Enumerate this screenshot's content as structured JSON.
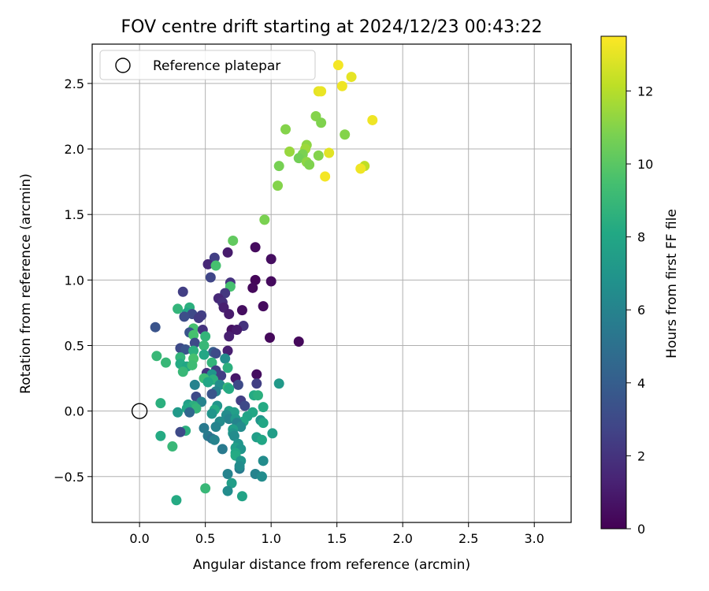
{
  "chart_data": {
    "type": "scatter",
    "title": "FOV centre drift starting at 2024/12/23 00:43:22",
    "xlabel": "Angular distance from reference (arcmin)",
    "ylabel": "Rotation from reference (arcmin)",
    "xlim": [
      -0.36,
      3.28
    ],
    "ylim": [
      -0.85,
      2.8
    ],
    "xticks": [
      0.0,
      0.5,
      1.0,
      1.5,
      2.0,
      2.5,
      3.0
    ],
    "xtick_labels": [
      "0.0",
      "0.5",
      "1.0",
      "1.5",
      "2.0",
      "2.5",
      "3.0"
    ],
    "yticks": [
      -0.5,
      0.0,
      0.5,
      1.0,
      1.5,
      2.0,
      2.5
    ],
    "ytick_labels": [
      "−0.5",
      "0.0",
      "0.5",
      "1.0",
      "1.5",
      "2.0",
      "2.5"
    ],
    "grid": true,
    "legend": {
      "position": "top-left",
      "label": "Reference platepar"
    },
    "reference_point": {
      "x": 0.0,
      "y": 0.0
    },
    "colorbar": {
      "label": "Hours from first FF file",
      "range": [
        0,
        13.5
      ],
      "ticks": [
        0,
        2,
        4,
        6,
        8,
        10,
        12
      ],
      "tick_labels": [
        "0",
        "2",
        "4",
        "6",
        "8",
        "10",
        "12"
      ],
      "colormap": "viridis"
    },
    "points": [
      {
        "x": 1.51,
        "y": 2.64,
        "c": 13.3
      },
      {
        "x": 1.61,
        "y": 2.55,
        "c": 13.0
      },
      {
        "x": 1.54,
        "y": 2.48,
        "c": 13.2
      },
      {
        "x": 1.36,
        "y": 2.44,
        "c": 13.0
      },
      {
        "x": 1.38,
        "y": 2.44,
        "c": 13.1
      },
      {
        "x": 1.34,
        "y": 2.25,
        "c": 11.0
      },
      {
        "x": 1.38,
        "y": 2.2,
        "c": 10.9
      },
      {
        "x": 1.77,
        "y": 2.22,
        "c": 13.2
      },
      {
        "x": 1.11,
        "y": 2.15,
        "c": 11.0
      },
      {
        "x": 1.56,
        "y": 2.11,
        "c": 11.0
      },
      {
        "x": 1.27,
        "y": 2.03,
        "c": 11.2
      },
      {
        "x": 1.26,
        "y": 2.0,
        "c": 11.5
      },
      {
        "x": 1.14,
        "y": 1.98,
        "c": 11.4
      },
      {
        "x": 1.24,
        "y": 1.96,
        "c": 10.8
      },
      {
        "x": 1.44,
        "y": 1.97,
        "c": 12.9
      },
      {
        "x": 1.36,
        "y": 1.95,
        "c": 11.0
      },
      {
        "x": 1.21,
        "y": 1.93,
        "c": 10.6
      },
      {
        "x": 1.27,
        "y": 1.9,
        "c": 11.2
      },
      {
        "x": 1.29,
        "y": 1.88,
        "c": 10.9
      },
      {
        "x": 1.71,
        "y": 1.87,
        "c": 12.2
      },
      {
        "x": 1.68,
        "y": 1.85,
        "c": 13.2
      },
      {
        "x": 1.06,
        "y": 1.87,
        "c": 10.7
      },
      {
        "x": 1.41,
        "y": 1.79,
        "c": 13.3
      },
      {
        "x": 1.05,
        "y": 1.72,
        "c": 11.0
      },
      {
        "x": 0.95,
        "y": 1.46,
        "c": 10.8
      },
      {
        "x": 0.71,
        "y": 1.3,
        "c": 10.2
      },
      {
        "x": 0.88,
        "y": 1.25,
        "c": 0.4
      },
      {
        "x": 0.67,
        "y": 1.21,
        "c": 1.0
      },
      {
        "x": 0.57,
        "y": 1.17,
        "c": 2.5
      },
      {
        "x": 1.0,
        "y": 1.16,
        "c": 0.5
      },
      {
        "x": 0.52,
        "y": 1.12,
        "c": 1.5
      },
      {
        "x": 0.58,
        "y": 1.11,
        "c": 9.5
      },
      {
        "x": 0.54,
        "y": 1.02,
        "c": 2.8
      },
      {
        "x": 0.88,
        "y": 1.0,
        "c": 0.2
      },
      {
        "x": 1.0,
        "y": 0.99,
        "c": 0.4
      },
      {
        "x": 0.69,
        "y": 0.98,
        "c": 2.0
      },
      {
        "x": 0.69,
        "y": 0.95,
        "c": 9.5
      },
      {
        "x": 0.86,
        "y": 0.94,
        "c": 0.3
      },
      {
        "x": 0.33,
        "y": 0.91,
        "c": 2.5
      },
      {
        "x": 0.65,
        "y": 0.9,
        "c": 2.2
      },
      {
        "x": 0.6,
        "y": 0.86,
        "c": 1.5
      },
      {
        "x": 0.63,
        "y": 0.83,
        "c": 1.8
      },
      {
        "x": 0.64,
        "y": 0.79,
        "c": 1.2
      },
      {
        "x": 0.78,
        "y": 0.77,
        "c": 0.5
      },
      {
        "x": 0.94,
        "y": 0.8,
        "c": 0.4
      },
      {
        "x": 0.29,
        "y": 0.78,
        "c": 8.8
      },
      {
        "x": 0.38,
        "y": 0.79,
        "c": 8.5
      },
      {
        "x": 0.36,
        "y": 0.75,
        "c": 8.0
      },
      {
        "x": 0.4,
        "y": 0.74,
        "c": 3.0
      },
      {
        "x": 0.47,
        "y": 0.73,
        "c": 2.5
      },
      {
        "x": 0.68,
        "y": 0.74,
        "c": 1.0
      },
      {
        "x": 0.34,
        "y": 0.72,
        "c": 3.2
      },
      {
        "x": 0.45,
        "y": 0.71,
        "c": 2.3
      },
      {
        "x": 0.79,
        "y": 0.65,
        "c": 2.0
      },
      {
        "x": 0.12,
        "y": 0.64,
        "c": 3.5
      },
      {
        "x": 0.41,
        "y": 0.63,
        "c": 9.5
      },
      {
        "x": 0.48,
        "y": 0.62,
        "c": 2.0
      },
      {
        "x": 0.7,
        "y": 0.62,
        "c": 0.6
      },
      {
        "x": 0.74,
        "y": 0.62,
        "c": 1.0
      },
      {
        "x": 0.38,
        "y": 0.6,
        "c": 3.5
      },
      {
        "x": 0.41,
        "y": 0.58,
        "c": 9.5
      },
      {
        "x": 0.5,
        "y": 0.57,
        "c": 8.8
      },
      {
        "x": 0.68,
        "y": 0.57,
        "c": 1.2
      },
      {
        "x": 0.99,
        "y": 0.56,
        "c": 0.3
      },
      {
        "x": 1.21,
        "y": 0.53,
        "c": 0.3
      },
      {
        "x": 0.42,
        "y": 0.52,
        "c": 3.0
      },
      {
        "x": 0.49,
        "y": 0.5,
        "c": 9.0
      },
      {
        "x": 0.31,
        "y": 0.48,
        "c": 3.0
      },
      {
        "x": 0.35,
        "y": 0.47,
        "c": 3.5
      },
      {
        "x": 0.67,
        "y": 0.46,
        "c": 1.2
      },
      {
        "x": 0.41,
        "y": 0.46,
        "c": 8.5
      },
      {
        "x": 0.56,
        "y": 0.45,
        "c": 4.0
      },
      {
        "x": 0.58,
        "y": 0.44,
        "c": 3.0
      },
      {
        "x": 0.13,
        "y": 0.42,
        "c": 9.0
      },
      {
        "x": 0.49,
        "y": 0.43,
        "c": 8.0
      },
      {
        "x": 0.31,
        "y": 0.41,
        "c": 8.8
      },
      {
        "x": 0.41,
        "y": 0.4,
        "c": 9.5
      },
      {
        "x": 0.65,
        "y": 0.4,
        "c": 6.5
      },
      {
        "x": 0.2,
        "y": 0.37,
        "c": 9.0
      },
      {
        "x": 0.31,
        "y": 0.36,
        "c": 8.2
      },
      {
        "x": 0.55,
        "y": 0.37,
        "c": 8.8
      },
      {
        "x": 0.36,
        "y": 0.34,
        "c": 8.0
      },
      {
        "x": 0.4,
        "y": 0.35,
        "c": 9.2
      },
      {
        "x": 0.67,
        "y": 0.33,
        "c": 8.5
      },
      {
        "x": 0.58,
        "y": 0.31,
        "c": 2.5
      },
      {
        "x": 0.51,
        "y": 0.29,
        "c": 2.0
      },
      {
        "x": 0.33,
        "y": 0.3,
        "c": 9.0
      },
      {
        "x": 0.55,
        "y": 0.28,
        "c": 7.0
      },
      {
        "x": 0.62,
        "y": 0.27,
        "c": 2.5
      },
      {
        "x": 0.89,
        "y": 0.28,
        "c": 0.5
      },
      {
        "x": 0.73,
        "y": 0.25,
        "c": 0.8
      },
      {
        "x": 0.49,
        "y": 0.25,
        "c": 9.2
      },
      {
        "x": 0.56,
        "y": 0.24,
        "c": 8.5
      },
      {
        "x": 0.52,
        "y": 0.22,
        "c": 8.0
      },
      {
        "x": 0.42,
        "y": 0.2,
        "c": 6.0
      },
      {
        "x": 0.61,
        "y": 0.2,
        "c": 6.5
      },
      {
        "x": 0.75,
        "y": 0.2,
        "c": 3.0
      },
      {
        "x": 0.89,
        "y": 0.21,
        "c": 2.5
      },
      {
        "x": 1.06,
        "y": 0.21,
        "c": 7.2
      },
      {
        "x": 0.67,
        "y": 0.18,
        "c": 9.0
      },
      {
        "x": 0.68,
        "y": 0.17,
        "c": 8.2
      },
      {
        "x": 0.58,
        "y": 0.15,
        "c": 6.0
      },
      {
        "x": 0.55,
        "y": 0.13,
        "c": 3.5
      },
      {
        "x": 0.43,
        "y": 0.11,
        "c": 3.0
      },
      {
        "x": 0.87,
        "y": 0.12,
        "c": 8.2
      },
      {
        "x": 0.9,
        "y": 0.12,
        "c": 8.5
      },
      {
        "x": 0.77,
        "y": 0.08,
        "c": 2.5
      },
      {
        "x": 0.47,
        "y": 0.07,
        "c": 6.0
      },
      {
        "x": 0.16,
        "y": 0.06,
        "c": 8.5
      },
      {
        "x": 0.37,
        "y": 0.05,
        "c": 7.5
      },
      {
        "x": 0.41,
        "y": 0.04,
        "c": 8.5
      },
      {
        "x": 0.59,
        "y": 0.04,
        "c": 7.0
      },
      {
        "x": 0.8,
        "y": 0.04,
        "c": 3.0
      },
      {
        "x": 0.94,
        "y": 0.03,
        "c": 8.2
      },
      {
        "x": 0.43,
        "y": 0.02,
        "c": 8.8
      },
      {
        "x": 0.36,
        "y": 0.02,
        "c": 8.0
      },
      {
        "x": 0.57,
        "y": 0.01,
        "c": 8.2
      },
      {
        "x": 0.68,
        "y": 0.0,
        "c": 7.5
      },
      {
        "x": 0.29,
        "y": -0.01,
        "c": 7.2
      },
      {
        "x": 0.38,
        "y": -0.01,
        "c": 4.5
      },
      {
        "x": 0.72,
        "y": -0.01,
        "c": 7.5
      },
      {
        "x": 0.86,
        "y": -0.01,
        "c": 8.0
      },
      {
        "x": 0.55,
        "y": -0.02,
        "c": 7.0
      },
      {
        "x": 0.66,
        "y": -0.03,
        "c": 6.5
      },
      {
        "x": 0.82,
        "y": -0.04,
        "c": 7.8
      },
      {
        "x": 0.68,
        "y": -0.06,
        "c": 6.0
      },
      {
        "x": 0.73,
        "y": -0.06,
        "c": 7.2
      },
      {
        "x": 0.92,
        "y": -0.07,
        "c": 7.0
      },
      {
        "x": 0.79,
        "y": -0.08,
        "c": 8.0
      },
      {
        "x": 0.61,
        "y": -0.08,
        "c": 6.5
      },
      {
        "x": 0.74,
        "y": -0.09,
        "c": 6.0
      },
      {
        "x": 0.94,
        "y": -0.09,
        "c": 8.0
      },
      {
        "x": 0.77,
        "y": -0.12,
        "c": 6.5
      },
      {
        "x": 0.49,
        "y": -0.13,
        "c": 5.5
      },
      {
        "x": 0.58,
        "y": -0.12,
        "c": 6.0
      },
      {
        "x": 0.71,
        "y": -0.14,
        "c": 7.5
      },
      {
        "x": 0.35,
        "y": -0.15,
        "c": 8.5
      },
      {
        "x": 0.31,
        "y": -0.16,
        "c": 3.0
      },
      {
        "x": 1.01,
        "y": -0.17,
        "c": 7.5
      },
      {
        "x": 0.71,
        "y": -0.17,
        "c": 7.0
      },
      {
        "x": 0.16,
        "y": -0.19,
        "c": 8.2
      },
      {
        "x": 0.52,
        "y": -0.19,
        "c": 5.5
      },
      {
        "x": 0.72,
        "y": -0.19,
        "c": 6.5
      },
      {
        "x": 0.55,
        "y": -0.21,
        "c": 5.0
      },
      {
        "x": 0.89,
        "y": -0.2,
        "c": 7.5
      },
      {
        "x": 0.57,
        "y": -0.22,
        "c": 6.0
      },
      {
        "x": 0.93,
        "y": -0.22,
        "c": 8.0
      },
      {
        "x": 0.75,
        "y": -0.25,
        "c": 7.0
      },
      {
        "x": 0.25,
        "y": -0.27,
        "c": 9.0
      },
      {
        "x": 0.73,
        "y": -0.28,
        "c": 7.5
      },
      {
        "x": 0.63,
        "y": -0.29,
        "c": 5.5
      },
      {
        "x": 0.77,
        "y": -0.29,
        "c": 7.0
      },
      {
        "x": 0.73,
        "y": -0.32,
        "c": 8.0
      },
      {
        "x": 0.73,
        "y": -0.34,
        "c": 8.2
      },
      {
        "x": 0.77,
        "y": -0.38,
        "c": 7.0
      },
      {
        "x": 0.94,
        "y": -0.38,
        "c": 6.5
      },
      {
        "x": 0.76,
        "y": -0.44,
        "c": 5.5
      },
      {
        "x": 0.76,
        "y": -0.42,
        "c": 6.5
      },
      {
        "x": 0.67,
        "y": -0.48,
        "c": 6.0
      },
      {
        "x": 0.88,
        "y": -0.48,
        "c": 6.0
      },
      {
        "x": 0.93,
        "y": -0.5,
        "c": 6.5
      },
      {
        "x": 0.7,
        "y": -0.55,
        "c": 7.5
      },
      {
        "x": 0.5,
        "y": -0.59,
        "c": 9.0
      },
      {
        "x": 0.67,
        "y": -0.61,
        "c": 6.5
      },
      {
        "x": 0.78,
        "y": -0.65,
        "c": 7.8
      },
      {
        "x": 0.28,
        "y": -0.68,
        "c": 8.2
      }
    ]
  }
}
